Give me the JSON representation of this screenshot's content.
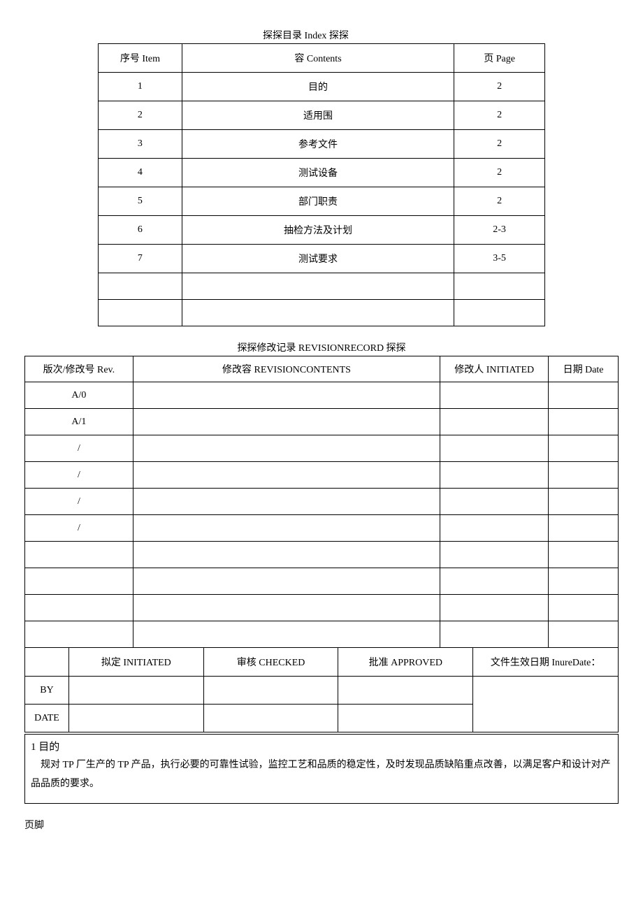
{
  "index": {
    "title": "探探目录 Index 探探",
    "headers": {
      "item": "序号 Item",
      "contents": "容 Contents",
      "page": "页 Page"
    },
    "rows": [
      {
        "item": "1",
        "contents": "目的",
        "page": "2"
      },
      {
        "item": "2",
        "contents": "适用围",
        "page": "2"
      },
      {
        "item": "3",
        "contents": "参考文件",
        "page": "2"
      },
      {
        "item": "4",
        "contents": "测试设备",
        "page": "2"
      },
      {
        "item": "5",
        "contents": "部门职责",
        "page": "2"
      },
      {
        "item": "6",
        "contents": "抽检方法及计划",
        "page": "2-3"
      },
      {
        "item": "7",
        "contents": "测试要求",
        "page": "3-5"
      },
      {
        "item": "",
        "contents": "",
        "page": ""
      },
      {
        "item": "",
        "contents": "",
        "page": ""
      }
    ]
  },
  "revision": {
    "title": "探探修改记录 REVISIONRECORD 探探",
    "headers": {
      "rev": "版次/修改号 Rev.",
      "contents": "修改容 REVISIONCONTENTS",
      "initiated": "修改人 INITIATED",
      "date": "日期 Date"
    },
    "rows": [
      {
        "rev": "A/0",
        "contents": "",
        "initiated": "",
        "date": ""
      },
      {
        "rev": "A/1",
        "contents": "",
        "initiated": "",
        "date": ""
      },
      {
        "rev": "/",
        "contents": "",
        "initiated": "",
        "date": ""
      },
      {
        "rev": "/",
        "contents": "",
        "initiated": "",
        "date": ""
      },
      {
        "rev": "/",
        "contents": "",
        "initiated": "",
        "date": ""
      },
      {
        "rev": "/",
        "contents": "",
        "initiated": "",
        "date": ""
      },
      {
        "rev": "",
        "contents": "",
        "initiated": "",
        "date": ""
      },
      {
        "rev": "",
        "contents": "",
        "initiated": "",
        "date": ""
      },
      {
        "rev": "",
        "contents": "",
        "initiated": "",
        "date": ""
      },
      {
        "rev": "",
        "contents": "",
        "initiated": "",
        "date": ""
      }
    ]
  },
  "approval": {
    "headers": {
      "initiated": "拟定 INITIATED",
      "checked": "审核 CHECKED",
      "approved": "批准 APPROVED",
      "inure": "文件生效日期 InureDate："
    },
    "labels": {
      "by": "BY",
      "date": "DATE"
    }
  },
  "section": {
    "heading": "1 目的",
    "body": "规对 TP 厂生产的 TP 产品，执行必要的可靠性试验，监控工艺和品质的稳定性，及时发现品质缺陷重点改善，以满足客户和设计对产品品质的要求。"
  },
  "footer": "页脚"
}
